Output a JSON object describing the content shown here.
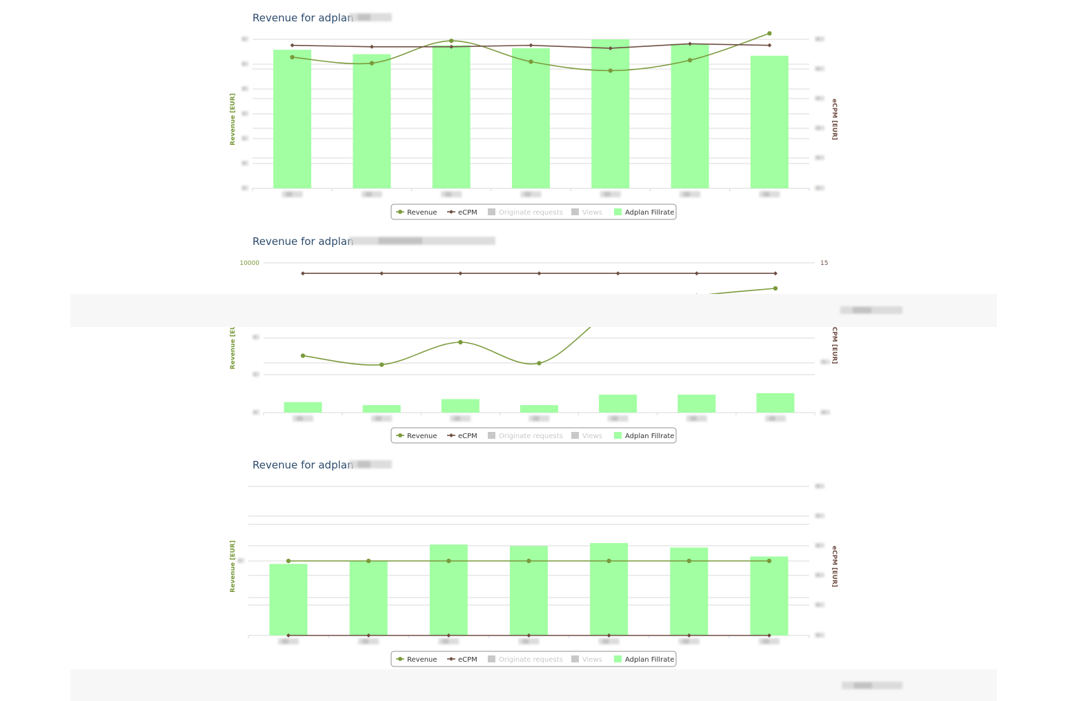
{
  "colors": {
    "revenue": "#7a9a3b",
    "ecpm": "#6f4e43",
    "fillrate": "#a2ffa2",
    "title": "#2c4a6b",
    "disabled_legend": "#c8c8c8",
    "grid": "#d8d8d8",
    "band": "#f7f7f7"
  },
  "legend_items": [
    {
      "label": "Revenue",
      "marker": "line-dot",
      "color": "#7a9a3b",
      "enabled": true
    },
    {
      "label": "eCPM",
      "marker": "line-diamond",
      "color": "#6f4e43",
      "enabled": true
    },
    {
      "label": "Originate requests",
      "marker": "square",
      "color": "#cccccc",
      "enabled": false
    },
    {
      "label": "Views",
      "marker": "square",
      "color": "#cccccc",
      "enabled": false
    },
    {
      "label": "Adplan Fillrate",
      "marker": "square",
      "color": "#a2ffa2",
      "enabled": true
    }
  ],
  "chart_data": [
    {
      "type": "bar",
      "title": "Revenue for adplan",
      "title_suffix_redacted": true,
      "ylabel": "Revenue [EUR]",
      "y2label": "eCPM [EUR]",
      "y_tick_labels": [],
      "y2_tick_labels": [],
      "categories_redacted": true,
      "series": [
        {
          "name": "Adplan Fillrate",
          "kind": "bar",
          "values": [
            0.93,
            0.9,
            0.96,
            0.94,
            1.0,
            0.97,
            0.89
          ]
        },
        {
          "name": "Revenue",
          "kind": "spline",
          "values": [
            0.88,
            0.84,
            0.99,
            0.85,
            0.79,
            0.86,
            1.04
          ]
        },
        {
          "name": "eCPM",
          "kind": "line",
          "values": [
            0.96,
            0.95,
            0.95,
            0.96,
            0.94,
            0.97,
            0.96
          ]
        }
      ]
    },
    {
      "type": "bar",
      "title": "Revenue for adplan",
      "title_suffix_redacted": true,
      "ylabel": "Revenue [EUR]",
      "y2label": "eCPM [EUR]",
      "y_tick_labels": [
        "10000"
      ],
      "y2_tick_labels": [
        "15"
      ],
      "categories_redacted": true,
      "series": [
        {
          "name": "Adplan Fillrate",
          "kind": "bar",
          "values": [
            0.07,
            0.05,
            0.09,
            0.05,
            0.12,
            0.12,
            0.13
          ]
        },
        {
          "name": "Revenue",
          "kind": "spline",
          "values": [
            0.38,
            0.32,
            0.47,
            0.33,
            0.7,
            0.78,
            0.83
          ]
        },
        {
          "name": "eCPM",
          "kind": "line",
          "values": [
            0.93,
            0.93,
            0.93,
            0.93,
            0.93,
            0.93,
            0.93
          ]
        }
      ]
    },
    {
      "type": "bar",
      "title": "Revenue for adplan",
      "title_suffix_redacted": true,
      "ylabel": "Revenue [EUR]",
      "y2label": "eCPM [EUR]",
      "y_tick_labels": [],
      "y2_tick_labels": [],
      "categories_redacted": true,
      "series": [
        {
          "name": "Adplan Fillrate",
          "kind": "bar",
          "values": [
            0.48,
            0.5,
            0.61,
            0.6,
            0.62,
            0.59,
            0.53
          ]
        },
        {
          "name": "Revenue",
          "kind": "line",
          "values": [
            0.5,
            0.5,
            0.5,
            0.5,
            0.5,
            0.5,
            0.5
          ]
        },
        {
          "name": "eCPM",
          "kind": "line",
          "values": [
            0.0,
            0.0,
            0.0,
            0.0,
            0.0,
            0.0,
            0.0
          ]
        }
      ]
    }
  ]
}
